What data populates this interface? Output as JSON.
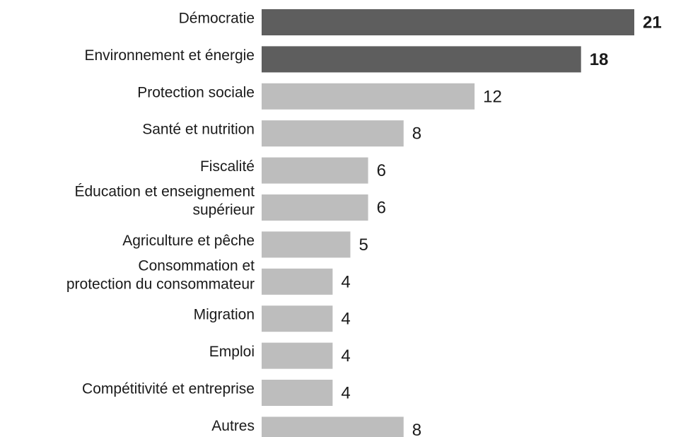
{
  "chart_data": {
    "type": "bar",
    "orientation": "horizontal",
    "title": "",
    "xlabel": "",
    "ylabel": "",
    "categories": [
      "Démocratie",
      "Environnement et énergie",
      "Protection sociale",
      "Santé et nutrition",
      "Fiscalité",
      "Éducation et enseignement supérieur",
      "Agriculture et pêche",
      "Consommation et protection du consommateur",
      "Migration",
      "Emploi",
      "Compétitivité et entreprise",
      "Autres"
    ],
    "category_lines": [
      [
        "Démocratie"
      ],
      [
        "Environnement et énergie"
      ],
      [
        "Protection sociale"
      ],
      [
        "Santé et nutrition"
      ],
      [
        "Fiscalité"
      ],
      [
        "Éducation et enseignement",
        "supérieur"
      ],
      [
        "Agriculture et pêche"
      ],
      [
        "Consommation et",
        "protection du consommateur"
      ],
      [
        "Migration"
      ],
      [
        "Emploi"
      ],
      [
        "Compétitivité et entreprise"
      ],
      [
        "Autres"
      ]
    ],
    "values": [
      21,
      18,
      12,
      8,
      6,
      6,
      5,
      4,
      4,
      4,
      4,
      8
    ],
    "highlighted": [
      true,
      true,
      false,
      false,
      false,
      false,
      false,
      false,
      false,
      false,
      false,
      false
    ],
    "xlim": [
      0,
      21
    ],
    "grid": false,
    "legend": "none",
    "colors": {
      "highlight": "#5e5e5e",
      "default": "#bdbdbd",
      "text": "#1a1a1a"
    }
  }
}
